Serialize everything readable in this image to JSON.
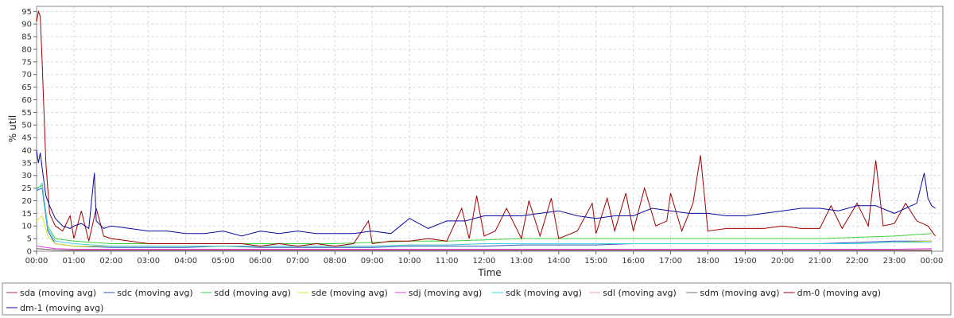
{
  "chart_data": {
    "type": "line",
    "xlabel": "Time",
    "ylabel": "% util",
    "ylim": [
      0,
      97
    ],
    "xlim": [
      0,
      24.3
    ],
    "grid": true,
    "legend_position": "bottom",
    "y_ticks": [
      0,
      5,
      10,
      15,
      20,
      25,
      30,
      35,
      40,
      45,
      50,
      55,
      60,
      65,
      70,
      75,
      80,
      85,
      90,
      95
    ],
    "x_ticks": [
      {
        "value": 0,
        "label": "00:00"
      },
      {
        "value": 1,
        "label": "01:00"
      },
      {
        "value": 2,
        "label": "02:00"
      },
      {
        "value": 3,
        "label": "03:00"
      },
      {
        "value": 4,
        "label": "04:00"
      },
      {
        "value": 5,
        "label": "05:00"
      },
      {
        "value": 6,
        "label": "06:00"
      },
      {
        "value": 7,
        "label": "07:00"
      },
      {
        "value": 8,
        "label": "08:00"
      },
      {
        "value": 9,
        "label": "09:00"
      },
      {
        "value": 10,
        "label": "10:00"
      },
      {
        "value": 11,
        "label": "11:00"
      },
      {
        "value": 12,
        "label": "12:00"
      },
      {
        "value": 13,
        "label": "13:00"
      },
      {
        "value": 14,
        "label": "14:00"
      },
      {
        "value": 15,
        "label": "15:00"
      },
      {
        "value": 16,
        "label": "16:00"
      },
      {
        "value": 17,
        "label": "17:00"
      },
      {
        "value": 18,
        "label": "18:00"
      },
      {
        "value": 19,
        "label": "19:00"
      },
      {
        "value": 20,
        "label": "20:00"
      },
      {
        "value": 21,
        "label": "21:00"
      },
      {
        "value": 22,
        "label": "22:00"
      },
      {
        "value": 23,
        "label": "23:00"
      },
      {
        "value": 24,
        "label": "00:00"
      }
    ],
    "series": [
      {
        "name": "sda (moving avg)",
        "color": "#c03030",
        "x": [
          0,
          0.5,
          1,
          2,
          3,
          4,
          5,
          6,
          7,
          8,
          9,
          10,
          11,
          12,
          13,
          14,
          15,
          16,
          17,
          18,
          19,
          20,
          21,
          22,
          23,
          24
        ],
        "values": [
          1,
          0.5,
          0.3,
          0.3,
          0.3,
          0.3,
          0.3,
          0.3,
          0.3,
          0.3,
          0.3,
          0.3,
          0.3,
          0.3,
          0.3,
          0.3,
          0.3,
          0.3,
          0.3,
          0.3,
          0.3,
          0.3,
          0.3,
          0.3,
          0.3,
          0.3
        ]
      },
      {
        "name": "sdc (moving avg)",
        "color": "#3050c0",
        "x": [
          0,
          0.15,
          0.3,
          0.5,
          1,
          2,
          3,
          4,
          5,
          6,
          7,
          8,
          9,
          10,
          11,
          12,
          13,
          14,
          15,
          16,
          17,
          18,
          19,
          20,
          21,
          22,
          23,
          24
        ],
        "values": [
          24,
          25,
          8,
          3,
          2,
          1.5,
          1.5,
          1.5,
          2,
          1.5,
          1.5,
          1.5,
          1.5,
          2,
          2,
          2,
          2.5,
          2.5,
          2.5,
          3,
          3,
          3,
          3,
          3,
          3,
          3.5,
          4,
          4
        ]
      },
      {
        "name": "sdd (moving avg)",
        "color": "#40d040",
        "x": [
          0,
          0.15,
          0.3,
          0.5,
          1,
          2,
          3,
          4,
          5,
          6,
          7,
          8,
          9,
          10,
          11,
          12,
          13,
          14,
          15,
          16,
          17,
          18,
          19,
          20,
          21,
          22,
          23,
          24
        ],
        "values": [
          25,
          26,
          10,
          5,
          4,
          3,
          3,
          3,
          3,
          3,
          3,
          3,
          3.5,
          4,
          4,
          4.5,
          5,
          5,
          5,
          5,
          5,
          5,
          5,
          5,
          5,
          5.5,
          6,
          7
        ]
      },
      {
        "name": "sde (moving avg)",
        "color": "#e0e020",
        "x": [
          0,
          0.15,
          0.3,
          0.5,
          1,
          2,
          3,
          4,
          5,
          6,
          7,
          8,
          9,
          10,
          11,
          12,
          13,
          14,
          15,
          16,
          17,
          18,
          19,
          20,
          21,
          22,
          23,
          24
        ],
        "values": [
          12,
          14,
          6,
          3,
          2,
          2,
          2,
          2,
          2,
          2,
          2,
          2,
          2,
          2.5,
          2.5,
          3,
          3,
          3,
          3,
          3,
          3,
          3,
          3,
          3,
          3,
          3,
          3.5,
          4
        ]
      },
      {
        "name": "sdj (moving avg)",
        "color": "#e040e0",
        "x": [
          0,
          0.5,
          1,
          2,
          3,
          4,
          5,
          6,
          7,
          8,
          9,
          10,
          11,
          12,
          13,
          14,
          15,
          16,
          17,
          18,
          19,
          20,
          21,
          22,
          23,
          24
        ],
        "values": [
          2,
          1,
          0.8,
          0.8,
          0.8,
          0.8,
          0.8,
          0.8,
          0.8,
          0.8,
          0.8,
          0.8,
          0.8,
          0.8,
          0.8,
          0.8,
          0.8,
          0.8,
          0.8,
          0.8,
          0.8,
          0.8,
          0.8,
          0.8,
          0.8,
          1
        ]
      },
      {
        "name": "sdk (moving avg)",
        "color": "#40d0e0",
        "x": [
          0,
          0.15,
          0.3,
          0.5,
          1,
          2,
          3,
          4,
          5,
          6,
          7,
          8,
          9,
          10,
          11,
          12,
          13,
          14,
          15,
          16,
          17,
          18,
          19,
          20,
          21,
          22,
          23,
          24
        ],
        "values": [
          24,
          27,
          9,
          4,
          3,
          2,
          2,
          2,
          2,
          2,
          2,
          2,
          2,
          2.5,
          2.5,
          3,
          3,
          3,
          3,
          3,
          3,
          3,
          3,
          3,
          3,
          3,
          3.5,
          3.5
        ]
      },
      {
        "name": "sdl (moving avg)",
        "color": "#f0a0a0",
        "x": [
          0,
          0.5,
          1,
          2,
          3,
          4,
          5,
          6,
          7,
          8,
          9,
          10,
          11,
          12,
          13,
          14,
          15,
          16,
          17,
          18,
          19,
          20,
          21,
          22,
          23,
          24
        ],
        "values": [
          1,
          0.5,
          0.5,
          0.5,
          0.5,
          0.5,
          0.5,
          0.5,
          0.5,
          0.5,
          0.5,
          0.5,
          0.5,
          0.5,
          0.5,
          0.5,
          0.5,
          0.5,
          0.5,
          0.5,
          0.5,
          0.5,
          0.5,
          0.5,
          0.5,
          0.5
        ]
      },
      {
        "name": "sdm (moving avg)",
        "color": "#707070",
        "x": [
          0,
          0.5,
          1,
          2,
          3,
          4,
          5,
          6,
          7,
          8,
          9,
          10,
          11,
          12,
          13,
          14,
          15,
          16,
          17,
          18,
          19,
          20,
          21,
          22,
          23,
          24
        ],
        "values": [
          1,
          0.5,
          0.4,
          0.4,
          0.4,
          0.4,
          0.4,
          0.4,
          0.4,
          0.4,
          0.4,
          0.4,
          0.4,
          0.4,
          0.4,
          0.4,
          0.4,
          0.4,
          0.4,
          0.4,
          0.4,
          0.4,
          0.4,
          0.4,
          0.4,
          0.4
        ]
      },
      {
        "name": "dm-0 (moving avg)",
        "color": "#a00000",
        "x": [
          0,
          0.05,
          0.1,
          0.15,
          0.25,
          0.35,
          0.5,
          0.7,
          0.9,
          1,
          1.2,
          1.4,
          1.6,
          1.8,
          2,
          2.5,
          3,
          3.5,
          4,
          4.5,
          5,
          5.5,
          6,
          6.5,
          7,
          7.5,
          8,
          8.5,
          8.9,
          9,
          9.5,
          10,
          10.5,
          11,
          11.4,
          11.6,
          11.8,
          12,
          12.3,
          12.6,
          13,
          13.2,
          13.5,
          13.8,
          14,
          14.5,
          14.9,
          15,
          15.3,
          15.5,
          15.8,
          16,
          16.3,
          16.6,
          16.9,
          17,
          17.3,
          17.6,
          17.8,
          18,
          18.5,
          19,
          19.5,
          20,
          20.5,
          21,
          21.3,
          21.6,
          22,
          22.3,
          22.5,
          22.7,
          23,
          23.3,
          23.6,
          23.9,
          24.1
        ],
        "values": [
          91,
          95,
          93,
          75,
          35,
          15,
          10,
          8,
          14,
          5,
          16,
          4,
          17,
          6,
          5,
          4,
          3,
          3,
          3,
          3,
          3,
          3,
          2,
          3,
          2,
          3,
          2,
          3,
          12,
          3,
          4,
          4,
          5,
          4,
          17,
          5,
          22,
          6,
          8,
          17,
          5,
          20,
          6,
          21,
          5,
          8,
          19,
          7,
          21,
          8,
          23,
          8,
          25,
          10,
          12,
          23,
          8,
          19,
          38,
          8,
          9,
          9,
          9,
          10,
          9,
          9,
          18,
          9,
          19,
          10,
          36,
          10,
          11,
          19,
          12,
          10,
          6
        ]
      },
      {
        "name": "dm-1 (moving avg)",
        "color": "#0a0aa0",
        "x": [
          0,
          0.05,
          0.1,
          0.15,
          0.25,
          0.35,
          0.5,
          0.7,
          0.9,
          1,
          1.2,
          1.4,
          1.55,
          1.6,
          1.8,
          2,
          2.5,
          3,
          3.5,
          4,
          4.5,
          5,
          5.5,
          6,
          6.5,
          7,
          7.5,
          8,
          8.5,
          9,
          9.5,
          10,
          10.5,
          11,
          11.5,
          12,
          12.5,
          13,
          13.5,
          14,
          14.5,
          15,
          15.5,
          16,
          16.5,
          17,
          17.5,
          18,
          18.5,
          19,
          19.5,
          20,
          20.5,
          21,
          21.5,
          22,
          22.5,
          23,
          23.3,
          23.6,
          23.8,
          23.9,
          24,
          24.1
        ],
        "values": [
          40,
          35,
          39,
          33,
          22,
          18,
          13,
          10,
          9,
          10,
          11,
          9,
          31,
          12,
          9,
          10,
          9,
          8,
          8,
          7,
          7,
          8,
          6,
          8,
          7,
          8,
          7,
          7,
          7,
          8,
          7,
          13,
          9,
          12,
          12,
          14,
          14,
          14,
          15,
          16,
          14,
          13,
          14,
          14,
          17,
          16,
          15,
          15,
          14,
          14,
          15,
          16,
          17,
          17,
          16,
          18,
          18,
          15,
          17,
          19,
          31,
          21,
          18,
          17
        ]
      }
    ]
  }
}
